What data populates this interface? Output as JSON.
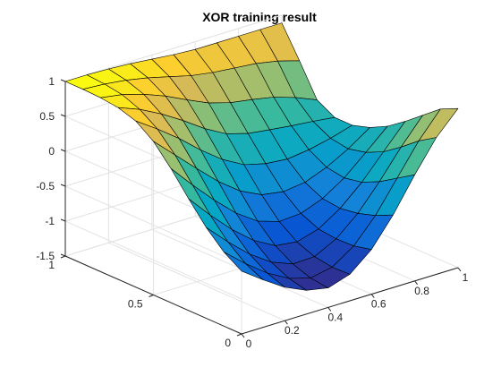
{
  "chart_data": {
    "type": "surface",
    "title": "XOR training result",
    "xlabel": "",
    "ylabel": "",
    "zlabel": "",
    "x": [
      0,
      0.1,
      0.2,
      0.3,
      0.4,
      0.5,
      0.6,
      0.7,
      0.8,
      0.9,
      1.0
    ],
    "y": [
      0,
      0.1,
      0.2,
      0.3,
      0.4,
      0.5,
      0.6,
      0.7,
      0.8,
      0.9,
      1.0
    ],
    "z": [
      [
        -0.6,
        -0.82,
        -1.02,
        -1.16,
        -1.22,
        -1.12,
        -0.86,
        -0.46,
        0.02,
        0.46,
        0.78
      ],
      [
        -0.44,
        -0.7,
        -0.93,
        -1.1,
        -1.19,
        -1.13,
        -0.92,
        -0.58,
        -0.14,
        0.3,
        0.66
      ],
      [
        -0.2,
        -0.5,
        -0.77,
        -0.98,
        -1.1,
        -1.09,
        -0.93,
        -0.66,
        -0.3,
        0.1,
        0.46
      ],
      [
        0.1,
        -0.23,
        -0.53,
        -0.78,
        -0.95,
        -0.99,
        -0.9,
        -0.7,
        -0.42,
        -0.08,
        0.26
      ],
      [
        0.42,
        0.09,
        -0.22,
        -0.5,
        -0.71,
        -0.81,
        -0.79,
        -0.67,
        -0.47,
        -0.2,
        0.08
      ],
      [
        0.7,
        0.41,
        0.12,
        -0.16,
        -0.39,
        -0.54,
        -0.59,
        -0.55,
        -0.43,
        -0.26,
        -0.05
      ],
      [
        0.88,
        0.67,
        0.44,
        0.18,
        -0.05,
        -0.22,
        -0.3,
        -0.33,
        -0.29,
        -0.22,
        -0.13
      ],
      [
        0.96,
        0.84,
        0.68,
        0.49,
        0.28,
        0.11,
        0.02,
        -0.02,
        -0.06,
        -0.09,
        -0.13
      ],
      [
        0.99,
        0.94,
        0.85,
        0.73,
        0.58,
        0.44,
        0.35,
        0.3,
        0.24,
        0.14,
        0.01
      ],
      [
        1.0,
        0.98,
        0.94,
        0.88,
        0.8,
        0.72,
        0.67,
        0.64,
        0.61,
        0.55,
        0.46
      ],
      [
        1.0,
        1.0,
        0.99,
        0.97,
        0.94,
        0.91,
        0.89,
        0.89,
        0.89,
        0.89,
        0.89
      ]
    ],
    "xlim": [
      0,
      1
    ],
    "ylim": [
      0,
      1
    ],
    "zlim": [
      -1.5,
      1
    ],
    "x_ticks": [
      "0",
      "0.2",
      "0.4",
      "0.6",
      "0.8",
      "1"
    ],
    "y_ticks": [
      "0",
      "0.5",
      "1"
    ],
    "z_ticks": [
      "-1.5",
      "-1",
      "-0.5",
      "0",
      "0.5",
      "1"
    ],
    "grid": true,
    "colormap": "parula",
    "edge_color": "#000000"
  }
}
